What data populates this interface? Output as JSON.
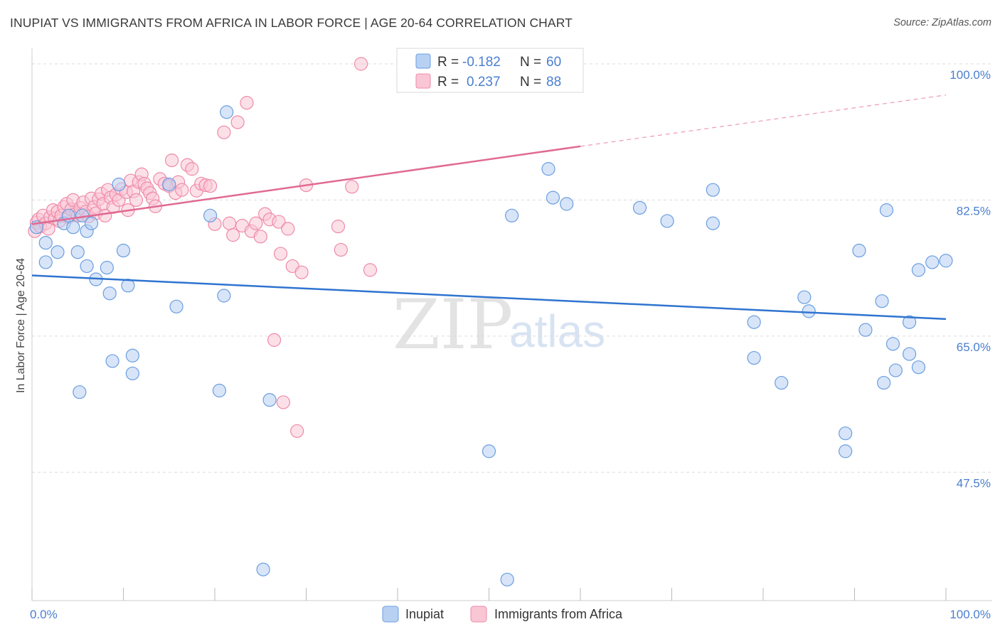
{
  "title": "INUPIAT VS IMMIGRANTS FROM AFRICA IN LABOR FORCE | AGE 20-64 CORRELATION CHART",
  "source": "Source: ZipAtlas.com",
  "chart_data": {
    "type": "scatter",
    "ylabel": "In Labor Force | Age 20-64",
    "xlim": [
      0,
      100
    ],
    "ylim": [
      31,
      102
    ],
    "y_ticks": [
      47.5,
      65.0,
      82.5,
      100.0
    ],
    "y_tick_labels": [
      "47.5%",
      "65.0%",
      "82.5%",
      "100.0%"
    ],
    "x_tick_labels": [
      "0.0%",
      "100.0%"
    ],
    "watermark": [
      "ZIP",
      "atlas"
    ],
    "legend_top": {
      "r_label": "R =",
      "n_label": "N =",
      "rows": [
        {
          "r": "-0.182",
          "n": "60"
        },
        {
          "r": "0.237",
          "n": "88"
        }
      ]
    },
    "series": [
      {
        "name": "Inupiat",
        "color": "#6a9ee0",
        "fill": "#b8d0f2",
        "trend": {
          "x0": 0,
          "y0": 72.8,
          "x1": 100,
          "y1": 67.2
        },
        "points": [
          [
            0.5,
            79
          ],
          [
            1.5,
            77
          ],
          [
            1.5,
            74.5
          ],
          [
            2.8,
            75.8
          ],
          [
            3.5,
            79.5
          ],
          [
            4,
            80.5
          ],
          [
            4.5,
            79
          ],
          [
            5,
            75.8
          ],
          [
            5.2,
            57.8
          ],
          [
            5.5,
            80.5
          ],
          [
            6,
            78.5
          ],
          [
            6,
            74
          ],
          [
            6.5,
            79.5
          ],
          [
            7,
            72.3
          ],
          [
            8.2,
            73.8
          ],
          [
            8.5,
            70.5
          ],
          [
            8.8,
            61.8
          ],
          [
            9.5,
            84.5
          ],
          [
            10,
            76
          ],
          [
            10.5,
            71.5
          ],
          [
            11,
            60.2
          ],
          [
            11,
            62.5
          ],
          [
            15,
            84.5
          ],
          [
            15.8,
            68.8
          ],
          [
            19.5,
            80.5
          ],
          [
            20.5,
            58
          ],
          [
            21,
            70.2
          ],
          [
            21.3,
            93.8
          ],
          [
            25.3,
            35
          ],
          [
            26,
            56.8
          ],
          [
            50,
            50.2
          ],
          [
            52,
            33.7
          ],
          [
            52.5,
            80.5
          ],
          [
            56.5,
            86.5
          ],
          [
            57,
            82.8
          ],
          [
            58.5,
            82
          ],
          [
            66.5,
            81.5
          ],
          [
            69.5,
            79.8
          ],
          [
            74.5,
            79.5
          ],
          [
            74.5,
            83.8
          ],
          [
            79,
            62.2
          ],
          [
            79,
            66.8
          ],
          [
            82,
            59
          ],
          [
            84.5,
            70
          ],
          [
            85,
            68.2
          ],
          [
            89,
            52.5
          ],
          [
            89,
            50.2
          ],
          [
            90.5,
            76
          ],
          [
            91.2,
            65.8
          ],
          [
            93,
            69.5
          ],
          [
            93.2,
            59
          ],
          [
            93.5,
            81.2
          ],
          [
            94.2,
            64
          ],
          [
            94.5,
            60.6
          ],
          [
            96,
            62.7
          ],
          [
            96,
            66.8
          ],
          [
            97,
            61
          ],
          [
            97,
            73.5
          ],
          [
            98.5,
            74.5
          ],
          [
            100,
            74.7
          ]
        ]
      },
      {
        "name": "Immigrants from Africa",
        "color": "#ee8aa8",
        "fill": "#f9c6d5",
        "trend": {
          "x0": 0,
          "y0": 79.4,
          "x1": 60,
          "y1": 89.4,
          "x1_dash": 100,
          "y1_dash": 96
        },
        "points": [
          [
            0.3,
            78.5
          ],
          [
            0.5,
            79.6
          ],
          [
            0.7,
            80
          ],
          [
            0.9,
            79.1
          ],
          [
            1.2,
            80.5
          ],
          [
            1.5,
            79.5
          ],
          [
            1.8,
            78.8
          ],
          [
            2,
            80.3
          ],
          [
            2.3,
            81.2
          ],
          [
            2.5,
            80.1
          ],
          [
            2.8,
            81
          ],
          [
            3,
            79.8
          ],
          [
            3.2,
            80.5
          ],
          [
            3.5,
            81.6
          ],
          [
            3.8,
            82
          ],
          [
            4,
            80.3
          ],
          [
            4.3,
            81.3
          ],
          [
            4.5,
            82.5
          ],
          [
            4.8,
            80.7
          ],
          [
            5,
            80.5
          ],
          [
            5.3,
            81.5
          ],
          [
            5.6,
            82.2
          ],
          [
            5.9,
            81
          ],
          [
            6.2,
            80.4
          ],
          [
            6.5,
            82.7
          ],
          [
            6.8,
            81.6
          ],
          [
            7,
            80.8
          ],
          [
            7.3,
            82.6
          ],
          [
            7.6,
            83.3
          ],
          [
            7.8,
            82
          ],
          [
            8,
            80.5
          ],
          [
            8.3,
            83.8
          ],
          [
            8.6,
            82.8
          ],
          [
            8.9,
            81.6
          ],
          [
            9.2,
            83.2
          ],
          [
            9.5,
            82.5
          ],
          [
            9.8,
            83.9
          ],
          [
            10.3,
            83.5
          ],
          [
            10.5,
            81.2
          ],
          [
            10.8,
            85
          ],
          [
            11.1,
            83.6
          ],
          [
            11.4,
            82.5
          ],
          [
            11.7,
            84.8
          ],
          [
            12,
            85.8
          ],
          [
            12.3,
            84.6
          ],
          [
            12.6,
            84
          ],
          [
            12.9,
            83.4
          ],
          [
            13.2,
            82.7
          ],
          [
            13.5,
            81.7
          ],
          [
            14,
            85.2
          ],
          [
            14.5,
            84.6
          ],
          [
            15,
            84.3
          ],
          [
            15.3,
            87.6
          ],
          [
            15.7,
            83.4
          ],
          [
            16,
            84.8
          ],
          [
            16.4,
            83.8
          ],
          [
            17,
            87
          ],
          [
            17.5,
            86.5
          ],
          [
            18,
            83.7
          ],
          [
            18.5,
            84.6
          ],
          [
            19,
            84.4
          ],
          [
            19.5,
            84.3
          ],
          [
            20,
            79.4
          ],
          [
            21,
            91.2
          ],
          [
            21.6,
            79.5
          ],
          [
            22,
            78
          ],
          [
            22.5,
            92.5
          ],
          [
            23,
            79.2
          ],
          [
            23.5,
            95
          ],
          [
            24,
            78.5
          ],
          [
            24.5,
            79.5
          ],
          [
            25,
            77.8
          ],
          [
            25.5,
            80.7
          ],
          [
            26,
            80
          ],
          [
            26.5,
            64.5
          ],
          [
            27,
            79.7
          ],
          [
            27.2,
            75.6
          ],
          [
            27.5,
            56.5
          ],
          [
            28,
            78.8
          ],
          [
            28.5,
            74
          ],
          [
            29,
            52.8
          ],
          [
            29.5,
            73.2
          ],
          [
            30,
            84.4
          ],
          [
            33.5,
            79.1
          ],
          [
            33.8,
            76.1
          ],
          [
            35,
            84.2
          ],
          [
            36,
            100
          ],
          [
            37,
            73.5
          ]
        ]
      }
    ]
  },
  "legend_bottom": [
    "Inupiat",
    "Immigrants from Africa"
  ]
}
